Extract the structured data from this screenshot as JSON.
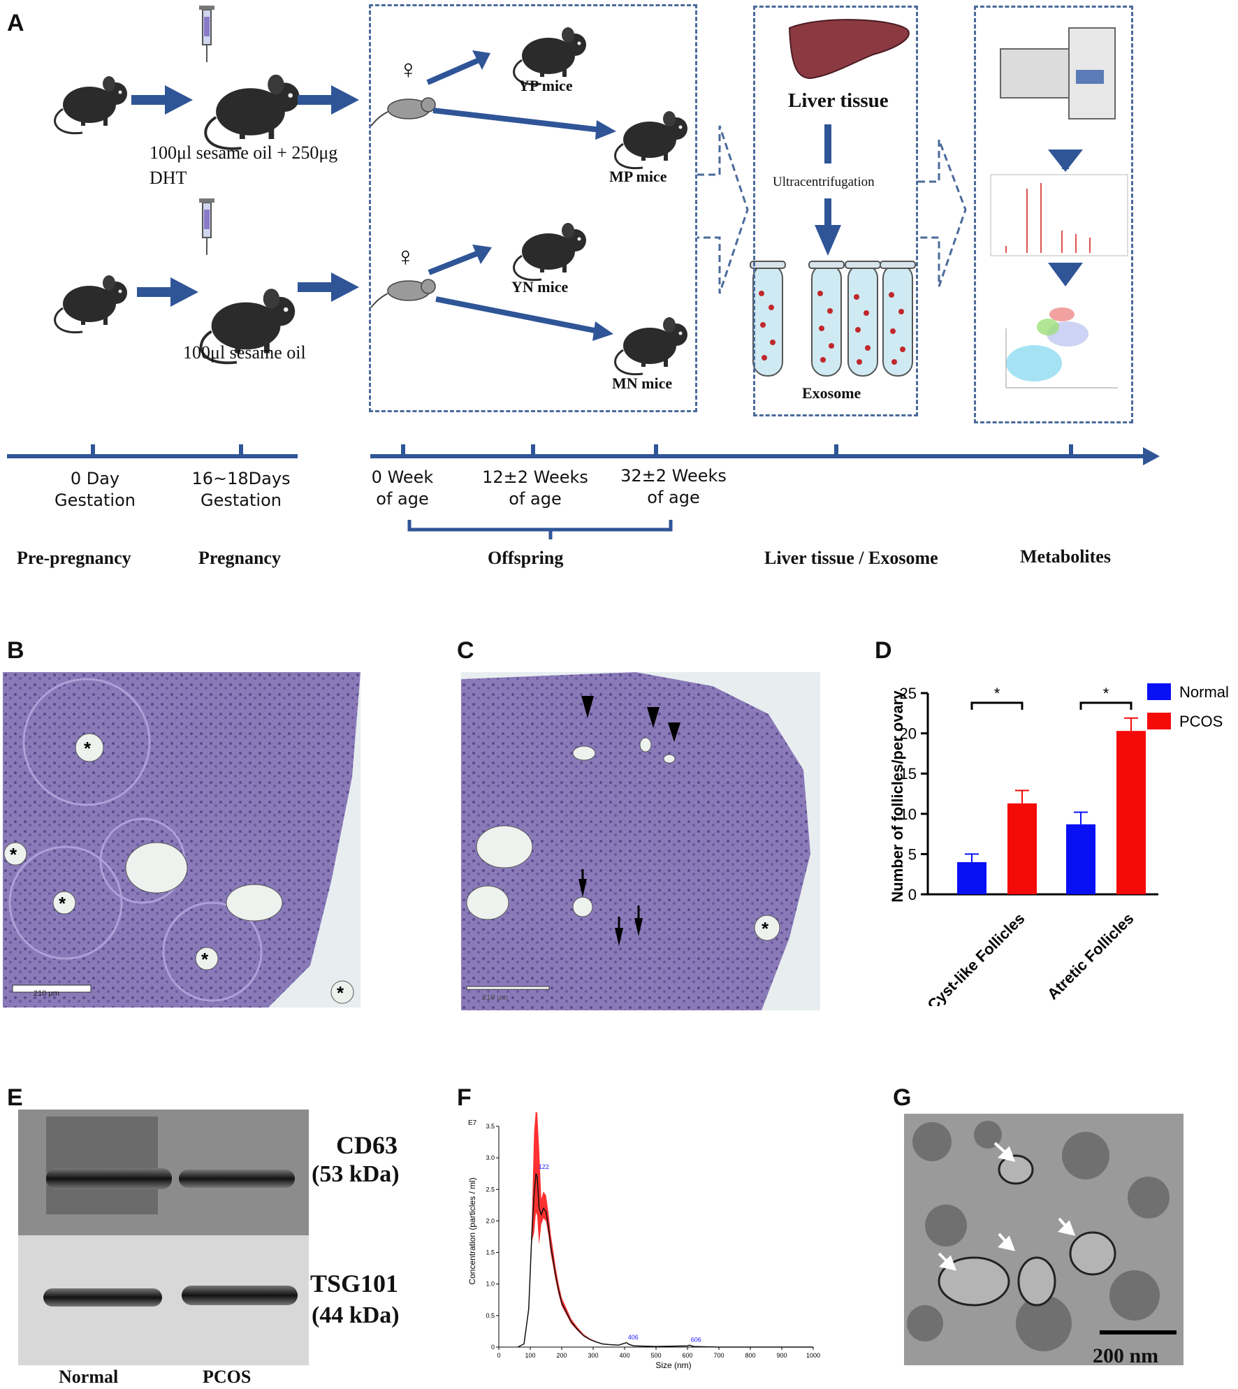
{
  "panels": {
    "a": "A",
    "b": "B",
    "c": "C",
    "d": "D",
    "e": "E",
    "f": "F",
    "g": "G"
  },
  "schema": {
    "dose_pcos": "100μl sesame oil + 250μg",
    "dose_pcos_2": "DHT",
    "dose_control": "100μl sesame oil",
    "yp": "YP mice",
    "mp": "MP mice",
    "yn": "YN mice",
    "mn": "MN mice",
    "liver": "Liver tissue",
    "ultra": "Ultracentrifugation",
    "exosome": "Exosome"
  },
  "timeline": {
    "t1": [
      "0 Day",
      "Gestation"
    ],
    "t2": [
      "16~18Days",
      "Gestation"
    ],
    "t3": [
      "0 Week",
      "of age"
    ],
    "t4": [
      "12±2 Weeks",
      "of age"
    ],
    "t5": [
      "32±2 Weeks",
      "of age"
    ],
    "stages": [
      "Pre-pregnancy",
      "Pregnancy",
      "Offspring",
      "Liver tissue / Exosome",
      "Metabolites"
    ]
  },
  "scalebars": {
    "b": "210 μm",
    "c": "210 μm"
  },
  "chart_data": [
    {
      "type": "bar",
      "panel": "D",
      "categories": [
        "Cyst-like Follicles",
        "Atretic Follicles"
      ],
      "series": [
        {
          "name": "Normal",
          "values": [
            4.0,
            8.7
          ],
          "errors": [
            1.0,
            1.5
          ],
          "color": "#0a10f5"
        },
        {
          "name": "PCOS",
          "values": [
            11.3,
            20.3
          ],
          "errors": [
            1.6,
            1.6
          ],
          "color": "#f50a0a"
        }
      ],
      "significance": [
        "*",
        "*"
      ],
      "ylabel": "Number of follicles/per ovary",
      "ylim": [
        0,
        25
      ],
      "yticks": [
        0,
        5,
        10,
        15,
        20,
        25
      ],
      "legend": "top-right"
    },
    {
      "type": "line",
      "panel": "F",
      "xlabel": "Size (nm)",
      "ylabel": "Concentration (particles / ml)",
      "exponent_label": "E7",
      "xlim": [
        0,
        1000
      ],
      "ylim": [
        0,
        3.5
      ],
      "xticks": [
        0,
        100,
        200,
        300,
        400,
        500,
        600,
        700,
        800,
        900,
        1000
      ],
      "yticks": [
        0,
        0.5,
        1.0,
        1.5,
        2.0,
        2.5,
        3.0,
        3.5
      ],
      "x": [
        60,
        80,
        95,
        105,
        112,
        118,
        122,
        128,
        135,
        142,
        150,
        158,
        165,
        172,
        180,
        190,
        200,
        215,
        230,
        250,
        270,
        290,
        310,
        330,
        350,
        380,
        400,
        406,
        415,
        430,
        500,
        600,
        606,
        620,
        700,
        800,
        1000
      ],
      "y": [
        0,
        0.05,
        0.6,
        1.8,
        2.4,
        2.75,
        2.7,
        2.2,
        2.1,
        2.2,
        2.15,
        1.9,
        1.6,
        1.4,
        1.15,
        0.9,
        0.7,
        0.55,
        0.4,
        0.28,
        0.18,
        0.12,
        0.08,
        0.05,
        0.04,
        0.03,
        0.06,
        0.07,
        0.04,
        0.02,
        0.01,
        0.02,
        0.03,
        0.01,
        0,
        0,
        0
      ],
      "peak_labels": [
        "122",
        "406",
        "606"
      ]
    }
  ],
  "blot": {
    "band1": "CD63",
    "band1_kda": "(53 kDa)",
    "band2": "TSG101",
    "band2_kda": "(44 kDa)",
    "lane1": "Normal",
    "lane2": "PCOS"
  },
  "tem_scale": "200 nm"
}
